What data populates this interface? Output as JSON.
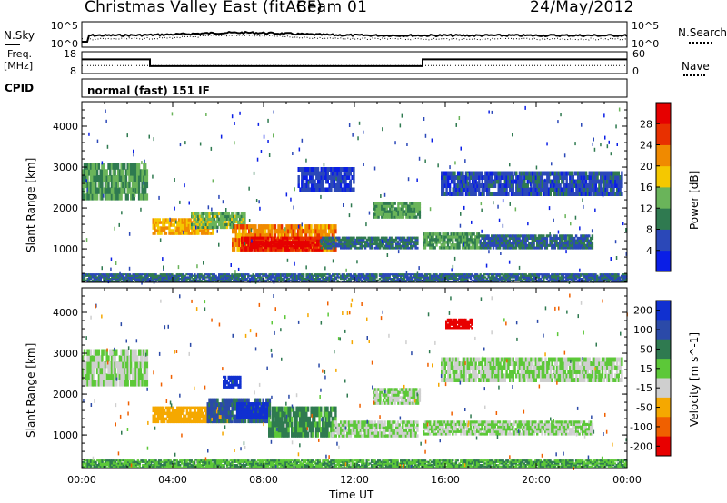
{
  "header": {
    "station": "Christmas Valley East (fitACF)",
    "beam": "Beam 01",
    "date": "24/May/2012"
  },
  "noise_panel": {
    "left_label": "N.Sky",
    "right_label": "N.Search",
    "ticks_left": [
      "10^5",
      "10^0"
    ],
    "ticks_right": [
      "10^5",
      "10^0"
    ]
  },
  "freq_panel": {
    "left_label_line1": "Freq.",
    "left_label_line2": "[MHz]",
    "right_label": "Nave",
    "ticks_left": [
      "18",
      "8"
    ],
    "ticks_right": [
      "60",
      "0"
    ],
    "chart_data": {
      "type": "line",
      "x_hours": [
        0,
        3,
        3,
        15,
        15,
        24
      ],
      "frequency_mhz": [
        14.5,
        14.5,
        11.4,
        11.4,
        14.5,
        14.5
      ],
      "nave": [
        22,
        22,
        22,
        22,
        22,
        22
      ],
      "ylim_freq": [
        8,
        18
      ],
      "ylim_nave": [
        0,
        60
      ]
    }
  },
  "cpid": {
    "label": "CPID",
    "value": "normal (fast) 151 IF"
  },
  "chart_data": [
    {
      "type": "heatmap",
      "name": "power",
      "ylabel": "Slant Range [km]",
      "xlabel": "Time UT",
      "x_ticks": [
        "00:00",
        "04:00",
        "08:00",
        "12:00",
        "16:00",
        "20:00",
        "00:00"
      ],
      "y_ticks": [
        1000,
        2000,
        3000,
        4000
      ],
      "xlim_hours": [
        0,
        24
      ],
      "ylim_km": [
        180,
        4600
      ],
      "colorbar": {
        "label": "Power [dB]",
        "ticks": [
          4,
          8,
          12,
          16,
          20,
          24,
          28
        ],
        "colors": [
          "#0a1ee6",
          "#2b48b8",
          "#2f7a50",
          "#6ab45a",
          "#f5c800",
          "#f08a00",
          "#e83000",
          "#e60000"
        ],
        "range": [
          0,
          32
        ]
      },
      "regions": [
        {
          "t0": 0.0,
          "t1": 2.9,
          "r0": 2200,
          "r1": 3100,
          "db": 12
        },
        {
          "t0": 3.1,
          "t1": 5.8,
          "r0": 1350,
          "r1": 1750,
          "db": 20
        },
        {
          "t0": 4.8,
          "t1": 7.2,
          "r0": 1500,
          "r1": 1900,
          "db": 14
        },
        {
          "t0": 6.6,
          "t1": 11.2,
          "r0": 950,
          "r1": 1600,
          "db": 22
        },
        {
          "t0": 7.0,
          "t1": 10.6,
          "r0": 950,
          "r1": 1300,
          "db": 28
        },
        {
          "t0": 7.4,
          "t1": 10.0,
          "r0": 1050,
          "r1": 1200,
          "db": 31
        },
        {
          "t0": 10.5,
          "t1": 14.8,
          "r0": 1000,
          "r1": 1300,
          "db": 9
        },
        {
          "t0": 12.8,
          "t1": 14.9,
          "r0": 1750,
          "r1": 2150,
          "db": 13
        },
        {
          "t0": 15.0,
          "t1": 17.5,
          "r0": 1000,
          "r1": 1400,
          "db": 12
        },
        {
          "t0": 17.5,
          "t1": 22.5,
          "r0": 1000,
          "r1": 1350,
          "db": 8
        },
        {
          "t0": 15.8,
          "t1": 23.8,
          "r0": 2300,
          "r1": 2900,
          "db": 6
        },
        {
          "t0": 9.5,
          "t1": 12.0,
          "r0": 2400,
          "r1": 3000,
          "db": 5
        },
        {
          "t0": 0.0,
          "t1": 24.0,
          "r0": 180,
          "r1": 400,
          "db": 8
        }
      ]
    },
    {
      "type": "heatmap",
      "name": "velocity",
      "ylabel": "Slant Range [km]",
      "xlabel": "Time UT",
      "x_ticks": [
        "00:00",
        "04:00",
        "08:00",
        "12:00",
        "16:00",
        "20:00",
        "00:00"
      ],
      "y_ticks": [
        1000,
        2000,
        3000,
        4000
      ],
      "xlim_hours": [
        0,
        24
      ],
      "ylim_km": [
        180,
        4600
      ],
      "colorbar": {
        "label": "Velocity [m s^-1]",
        "ticks": [
          200,
          100,
          50,
          15,
          -15,
          -50,
          -100,
          -200
        ],
        "colors": [
          "#1030d0",
          "#2b4aa8",
          "#2f7a50",
          "#5cc838",
          "#cfcfcf",
          "#f5a800",
          "#f06000",
          "#e80000"
        ]
      },
      "regions": [
        {
          "t0": 0.0,
          "t1": 2.9,
          "r0": 2200,
          "r1": 3100,
          "vel": 0
        },
        {
          "t0": 3.1,
          "t1": 6.5,
          "r0": 1300,
          "r1": 1700,
          "vel": -60
        },
        {
          "t0": 5.5,
          "t1": 8.3,
          "r0": 1300,
          "r1": 1900,
          "vel": 80
        },
        {
          "t0": 6.2,
          "t1": 7.0,
          "r0": 2150,
          "r1": 2450,
          "vel": 200
        },
        {
          "t0": 6.8,
          "t1": 8.2,
          "r0": 1400,
          "r1": 1800,
          "vel": 210
        },
        {
          "t0": 8.2,
          "t1": 11.2,
          "r0": 950,
          "r1": 1700,
          "vel": 40
        },
        {
          "t0": 11.0,
          "t1": 14.8,
          "r0": 950,
          "r1": 1350,
          "vel": 0
        },
        {
          "t0": 12.8,
          "t1": 14.9,
          "r0": 1750,
          "r1": 2150,
          "vel": 0
        },
        {
          "t0": 15.0,
          "t1": 22.5,
          "r0": 1000,
          "r1": 1350,
          "vel": 0
        },
        {
          "t0": 15.8,
          "t1": 23.8,
          "r0": 2300,
          "r1": 2900,
          "vel": 0
        },
        {
          "t0": 16.0,
          "t1": 17.2,
          "r0": 3600,
          "r1": 3850,
          "vel": -220
        },
        {
          "t0": 0.0,
          "t1": 24.0,
          "r0": 180,
          "r1": 400,
          "vel": 30
        }
      ]
    }
  ]
}
